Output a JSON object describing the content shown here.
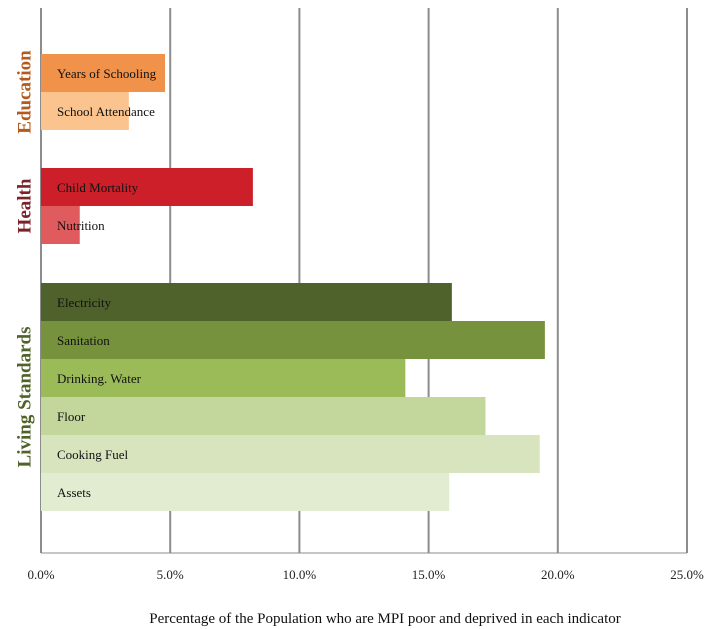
{
  "chart_data": {
    "type": "bar",
    "orientation": "horizontal",
    "xlabel": "Percentage of the Population who are MPI poor and deprived in each indicator",
    "xlim": [
      0,
      25
    ],
    "x_ticks": [
      "0.0%",
      "5.0%",
      "10.0%",
      "15.0%",
      "20.0%",
      "25.0%"
    ],
    "grid": "vertical",
    "groups": [
      {
        "name": "Education",
        "color": "#b35a1e",
        "bars": [
          {
            "label": "Years of Schooling",
            "value": 4.8,
            "color": "#f0924a"
          },
          {
            "label": "School Attendance",
            "value": 3.4,
            "color": "#fbc48e"
          }
        ]
      },
      {
        "name": "Health",
        "color": "#7a2228",
        "bars": [
          {
            "label": "Child Mortality",
            "value": 8.2,
            "color": "#cc1f29"
          },
          {
            "label": "Nutrition",
            "value": 1.5,
            "color": "#e05b5e"
          }
        ]
      },
      {
        "name": "Living Standards",
        "color": "#4f6228",
        "bars": [
          {
            "label": "Electricity",
            "value": 15.9,
            "color": "#4f622b"
          },
          {
            "label": "Sanitation",
            "value": 19.5,
            "color": "#76923c"
          },
          {
            "label": "Drinking. Water",
            "value": 14.1,
            "color": "#9bbb59"
          },
          {
            "label": "Floor",
            "value": 17.2,
            "color": "#c3d69b"
          },
          {
            "label": "Cooking Fuel",
            "value": 19.3,
            "color": "#d7e4bd"
          },
          {
            "label": "Assets",
            "value": 15.8,
            "color": "#e2ecd1"
          }
        ]
      }
    ]
  }
}
